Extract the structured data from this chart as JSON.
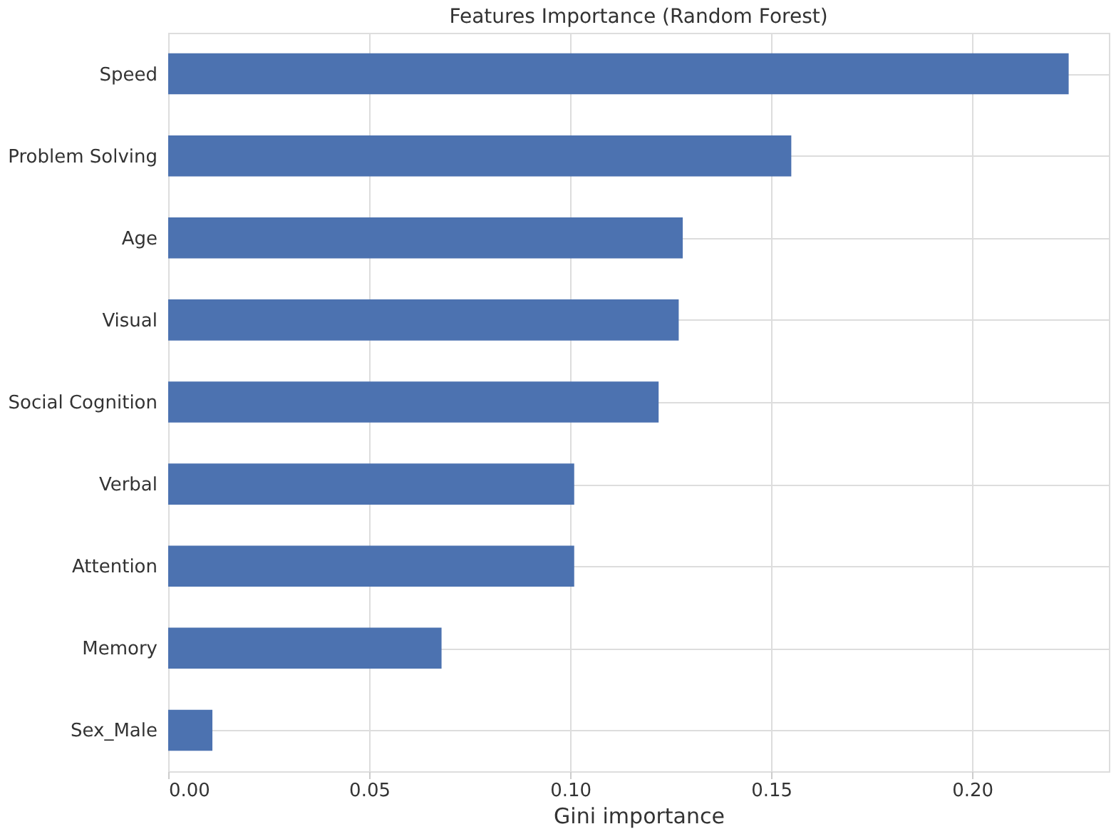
{
  "chart_data": {
    "type": "bar",
    "orientation": "horizontal",
    "title": "Features Importance (Random Forest)",
    "xlabel": "Gini importance",
    "categories": [
      "Speed",
      "Problem Solving",
      "Age",
      "Visual",
      "Social Cognition",
      "Verbal",
      "Attention",
      "Memory",
      "Sex_Male"
    ],
    "values": [
      0.224,
      0.155,
      0.128,
      0.127,
      0.122,
      0.101,
      0.101,
      0.068,
      0.011
    ],
    "color": "#4c72b0",
    "xlim": [
      0,
      0.234
    ],
    "xticks": [
      {
        "value": 0,
        "label": "0.00"
      },
      {
        "value": 0.05,
        "label": "0.05"
      },
      {
        "value": 0.1,
        "label": "0.10"
      },
      {
        "value": 0.15,
        "label": "0.15"
      },
      {
        "value": 0.2,
        "label": "0.20"
      }
    ],
    "grid": true
  }
}
